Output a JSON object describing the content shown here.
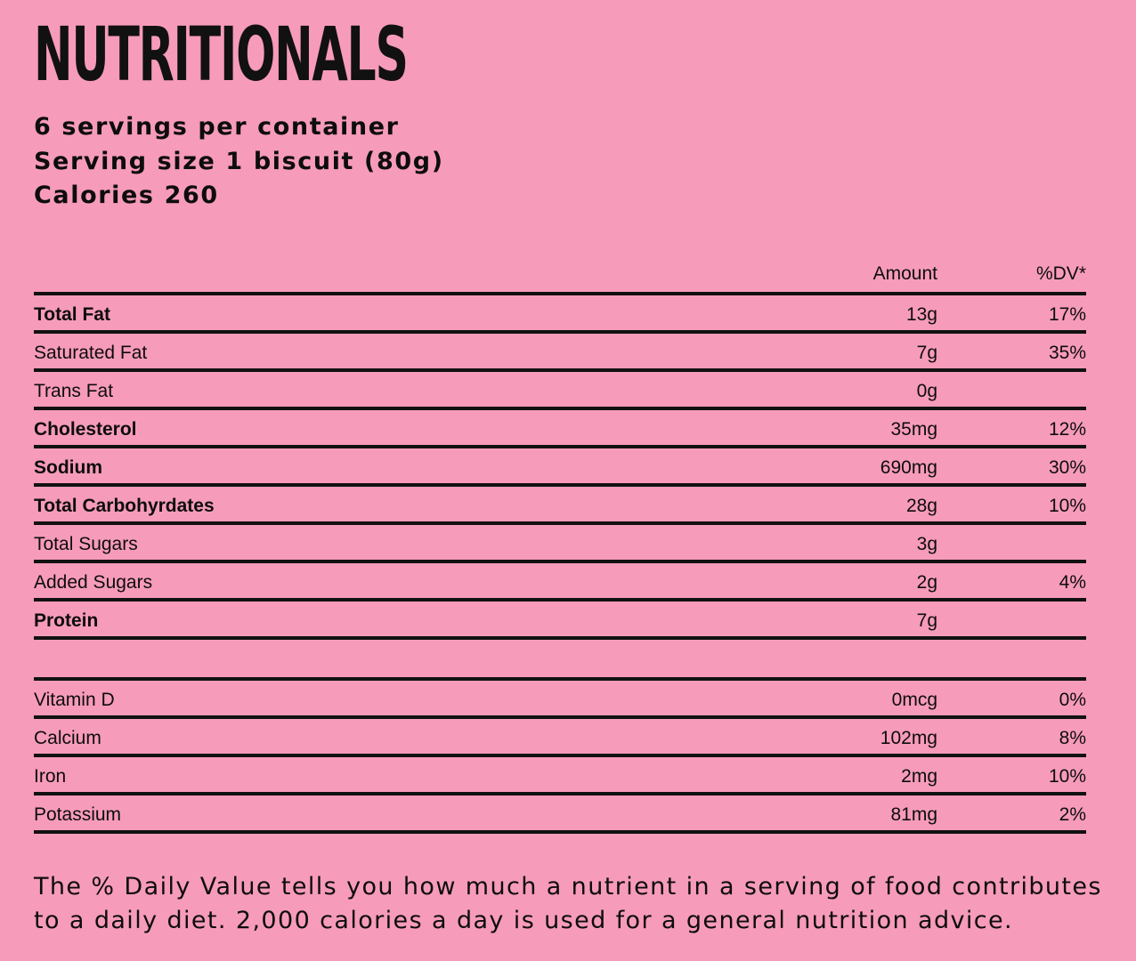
{
  "title": "NUTRITIONALS",
  "servings_per_container": "6 servings per container",
  "serving_size": "Serving size 1 biscuit (80g)",
  "calories": "Calories 260",
  "table": {
    "header": {
      "amount": "Amount",
      "dv": "%DV*"
    },
    "nutrients": [
      {
        "name": "Total Fat",
        "amount": "13g",
        "dv": "17%",
        "bold": true
      },
      {
        "name": "Saturated Fat",
        "amount": "7g",
        "dv": "35%",
        "bold": false
      },
      {
        "name": "Trans Fat",
        "amount": "0g",
        "dv": "",
        "bold": false
      },
      {
        "name": "Cholesterol",
        "amount": "35mg",
        "dv": "12%",
        "bold": true
      },
      {
        "name": "Sodium",
        "amount": "690mg",
        "dv": "30%",
        "bold": true
      },
      {
        "name": "Total Carbohyrdates",
        "amount": "28g",
        "dv": "10%",
        "bold": true
      },
      {
        "name": "Total Sugars",
        "amount": "3g",
        "dv": "",
        "bold": false
      },
      {
        "name": "Added Sugars",
        "amount": "2g",
        "dv": "4%",
        "bold": false
      },
      {
        "name": "Protein",
        "amount": "7g",
        "dv": "",
        "bold": true
      }
    ],
    "vitamins": [
      {
        "name": "Vitamin D",
        "amount": "0mcg",
        "dv": "0%"
      },
      {
        "name": "Calcium",
        "amount": "102mg",
        "dv": "8%"
      },
      {
        "name": "Iron",
        "amount": "2mg",
        "dv": "10%"
      },
      {
        "name": "Potassium",
        "amount": "81mg",
        "dv": "2%"
      }
    ]
  },
  "footnote": "The % Daily Value tells you how much a nutrient in a serving of food contributes to a daily diet. 2,000 calories a day is used for a general nutrition advice.",
  "colors": {
    "background": "#f79bbb",
    "text": "#0d0d0d"
  }
}
